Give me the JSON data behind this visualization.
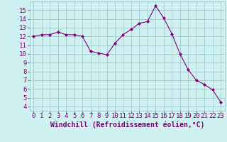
{
  "x": [
    0,
    1,
    2,
    3,
    4,
    5,
    6,
    7,
    8,
    9,
    10,
    11,
    12,
    13,
    14,
    15,
    16,
    17,
    18,
    19,
    20,
    21,
    22,
    23
  ],
  "y": [
    12,
    12.2,
    12.2,
    12.5,
    12.2,
    12.2,
    12,
    10.3,
    10.1,
    9.9,
    11.2,
    12.2,
    12.8,
    13.5,
    13.7,
    15.5,
    14.1,
    12.3,
    10.0,
    8.2,
    7.0,
    6.5,
    5.9,
    4.5
  ],
  "line_color": "#800080",
  "marker": "D",
  "marker_size": 2.0,
  "bg_color": "#cff0f0",
  "grid_color": "#a0cccc",
  "xlabel": "Windchill (Refroidissement éolien,°C)",
  "xlabel_color": "#800080",
  "xlabel_fontsize": 7,
  "xtick_labels": [
    "0",
    "1",
    "2",
    "3",
    "4",
    "5",
    "6",
    "7",
    "8",
    "9",
    "10",
    "11",
    "12",
    "13",
    "14",
    "15",
    "16",
    "17",
    "18",
    "19",
    "20",
    "21",
    "22",
    "23"
  ],
  "ytick_min": 4,
  "ytick_max": 15,
  "tick_color": "#800080",
  "tick_fontsize": 6.5,
  "ylim": [
    3.5,
    16.0
  ],
  "xlim": [
    -0.5,
    23.5
  ]
}
